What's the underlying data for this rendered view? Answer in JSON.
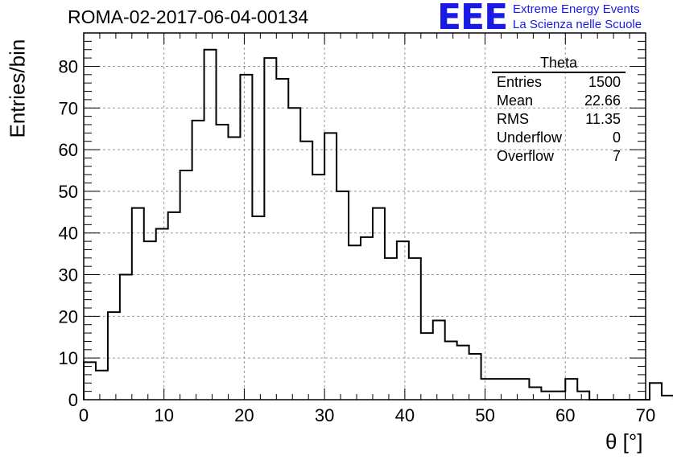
{
  "run_title": "ROMA-02-2017-06-04-00134",
  "logo": {
    "mark": "EEE",
    "line1": "Extreme Energy Events",
    "line2": "La Scienza nelle Scuole",
    "color": "#1a1ae6"
  },
  "stats_box": {
    "title": "Theta",
    "rows": [
      {
        "label": "Entries",
        "value": "1500"
      },
      {
        "label": "Mean",
        "value": "22.66"
      },
      {
        "label": "RMS",
        "value": "11.35"
      },
      {
        "label": "Underflow",
        "value": "0"
      },
      {
        "label": "Overflow",
        "value": "7"
      }
    ]
  },
  "chart_data": {
    "type": "histogram",
    "xlabel": "θ [°]",
    "ylabel": "Entries/bin",
    "xlim": [
      0,
      70
    ],
    "ylim": [
      0,
      88
    ],
    "bin_width": 1.5,
    "x_ticks": [
      0,
      10,
      20,
      30,
      40,
      50,
      60,
      70
    ],
    "y_ticks": [
      0,
      10,
      20,
      30,
      40,
      50,
      60,
      70,
      80
    ],
    "grid": true,
    "values": [
      9,
      7,
      21,
      30,
      46,
      38,
      41,
      45,
      55,
      67,
      84,
      66,
      63,
      78,
      44,
      82,
      77,
      70,
      62,
      54,
      64,
      50,
      37,
      39,
      46,
      34,
      38,
      34,
      16,
      19,
      14,
      13,
      11,
      5,
      5,
      5,
      5,
      3,
      2,
      2,
      5,
      2,
      0,
      0,
      0,
      0,
      0,
      4,
      1
    ]
  }
}
